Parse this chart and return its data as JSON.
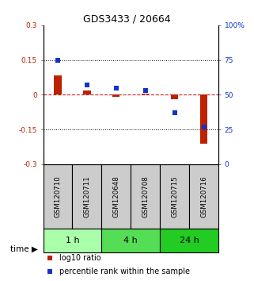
{
  "title": "GDS3433 / 20664",
  "samples": [
    "GSM120710",
    "GSM120711",
    "GSM120648",
    "GSM120708",
    "GSM120715",
    "GSM120716"
  ],
  "log10_ratio": [
    0.085,
    0.018,
    -0.008,
    0.004,
    -0.018,
    -0.21
  ],
  "percentile_rank": [
    75,
    57,
    55,
    53,
    37,
    27
  ],
  "ylim_left": [
    -0.3,
    0.3
  ],
  "ylim_right": [
    0,
    100
  ],
  "yticks_left": [
    -0.3,
    -0.15,
    0,
    0.15,
    0.3
  ],
  "yticks_right": [
    0,
    25,
    50,
    75,
    100
  ],
  "ytick_labels_left": [
    "-0.3",
    "-0.15",
    "0",
    "0.15",
    "0.3"
  ],
  "ytick_labels_right": [
    "0",
    "25",
    "50",
    "75",
    "100%"
  ],
  "bar_color_red": "#bb2200",
  "dot_color_blue": "#1133cc",
  "zero_line_color": "#cc2222",
  "sample_box_color": "#cccccc",
  "group_1h_color": "#aaffaa",
  "group_4h_color": "#55dd55",
  "group_24h_color": "#22cc22",
  "legend_red_label": "log10 ratio",
  "legend_blue_label": "percentile rank within the sample"
}
